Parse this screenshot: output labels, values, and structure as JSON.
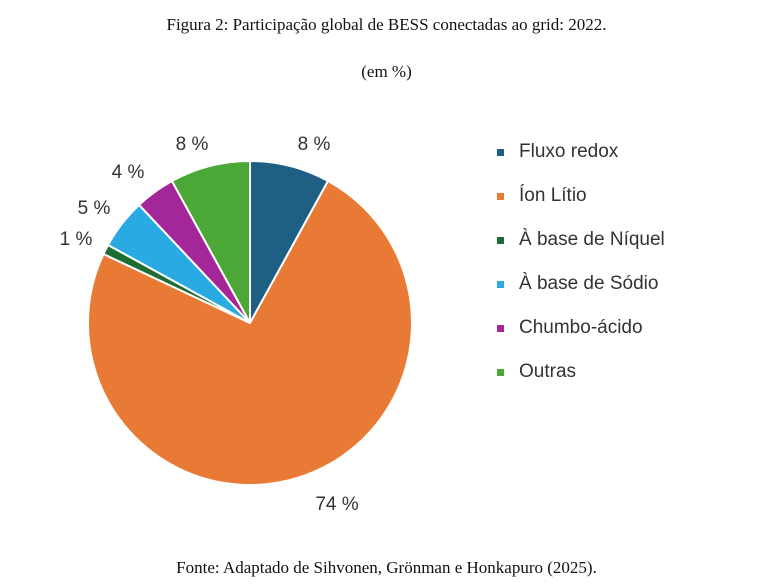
{
  "figure": {
    "title": "Figura 2: Participação global de BESS conectadas ao grid: 2022.",
    "subtitle": "(em %)",
    "source": "Fonte: Adaptado de Sihvonen, Grönman e Honkapuro (2025)."
  },
  "chart_data": {
    "type": "pie",
    "unit": "%",
    "start": "12 o'clock",
    "direction": "clockwise",
    "legend_position": "right",
    "slices": [
      {
        "label": "Fluxo redox",
        "value": 8,
        "value_label": "8 %",
        "color": "#1f5f84"
      },
      {
        "label": "Íon Lítio",
        "value": 74,
        "value_label": "74 %",
        "color": "#e87a35"
      },
      {
        "label": "À base de Níquel",
        "value": 1,
        "value_label": "1 %",
        "color": "#1d6c31"
      },
      {
        "label": "À base de Sódio",
        "value": 5,
        "value_label": "5 %",
        "color": "#2aaae2"
      },
      {
        "label": "Chumbo-ácido",
        "value": 4,
        "value_label": "4 %",
        "color": "#a4279a"
      },
      {
        "label": "Outras",
        "value": 8,
        "value_label": "8 %",
        "color": "#4ba837"
      }
    ]
  }
}
